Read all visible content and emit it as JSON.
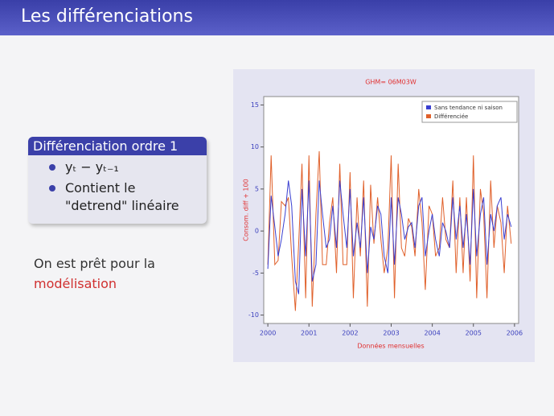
{
  "header": {
    "title": "Les différenciations"
  },
  "block": {
    "title": "Différenciation ordre 1",
    "items": [
      "yₜ − yₜ₋₁",
      "Contient le \"detrend\" linéaire"
    ]
  },
  "text": {
    "line1": "On est prêt pour la",
    "line2": "modélisation"
  },
  "chart_data": {
    "type": "line",
    "title": "GHM= 06M03W",
    "x_label": "Données mensuelles",
    "y_label": "Consom. diff + 100",
    "x": [
      2000,
      2000.08,
      2000.17,
      2000.25,
      2000.33,
      2000.42,
      2000.5,
      2000.58,
      2000.67,
      2000.75,
      2000.83,
      2000.92,
      2001,
      2001.08,
      2001.17,
      2001.25,
      2001.33,
      2001.42,
      2001.5,
      2001.58,
      2001.67,
      2001.75,
      2001.83,
      2001.92,
      2002,
      2002.08,
      2002.17,
      2002.25,
      2002.33,
      2002.42,
      2002.5,
      2002.58,
      2002.67,
      2002.75,
      2002.83,
      2002.92,
      2003,
      2003.08,
      2003.17,
      2003.25,
      2003.33,
      2003.42,
      2003.5,
      2003.58,
      2003.67,
      2003.75,
      2003.83,
      2003.92,
      2004,
      2004.08,
      2004.17,
      2004.25,
      2004.33,
      2004.42,
      2004.5,
      2004.58,
      2004.67,
      2004.75,
      2004.83,
      2004.92,
      2005,
      2005.08,
      2005.17,
      2005.25,
      2005.33,
      2005.42,
      2005.5,
      2005.58,
      2005.67,
      2005.75,
      2005.83,
      2005.92
    ],
    "series": [
      {
        "name": "Sans tendance ni saison",
        "color": "#3a3fd0",
        "values": [
          -4.5,
          4.2,
          0.5,
          -3,
          -1,
          2,
          6,
          3,
          -6,
          -7.5,
          5,
          -3,
          6,
          -6,
          -4,
          6,
          2,
          -2,
          -1,
          3,
          -2,
          6,
          2,
          -2,
          5,
          -3,
          1,
          -2,
          4,
          -5,
          0.5,
          -1,
          3,
          2,
          -3,
          -5,
          4,
          -4,
          4,
          2,
          -1,
          0.5,
          1,
          -2,
          3,
          4,
          -3,
          0,
          2,
          -1,
          -3,
          1,
          0,
          -2,
          4,
          -1,
          3,
          -2,
          2,
          -4,
          5,
          -3,
          2,
          4,
          -4,
          2,
          0,
          3,
          4,
          -1,
          2,
          0.5
        ]
      },
      {
        "name": "Différenciée",
        "color": "#e0602a",
        "values": [
          -4,
          9,
          -4,
          -3.5,
          3.5,
          3,
          4,
          -3,
          -9.5,
          -1.5,
          8,
          -8,
          9,
          -9,
          2,
          9.5,
          -4,
          -4,
          1,
          4,
          -5,
          8,
          -4,
          -4,
          7,
          -8,
          4,
          -3,
          6,
          -9,
          5.5,
          -1.5,
          4,
          -1,
          -5,
          -2,
          9,
          -8,
          8,
          -2,
          -3,
          1.5,
          0.5,
          -3,
          5,
          1,
          -7,
          3,
          2,
          -3,
          -2,
          4,
          -1,
          -2,
          6,
          -5,
          4,
          -5,
          4,
          -6,
          9,
          -8,
          5,
          2,
          -8,
          6,
          -2,
          3,
          1,
          -5,
          3,
          -1.5
        ]
      }
    ],
    "xlim": [
      1999.9,
      2006.1
    ],
    "xticks": [
      2000,
      2001,
      2002,
      2003,
      2004,
      2005,
      2006
    ],
    "ylim": [
      -11,
      16
    ],
    "yticks": [
      -10,
      -5,
      0,
      5,
      10,
      15
    ]
  }
}
